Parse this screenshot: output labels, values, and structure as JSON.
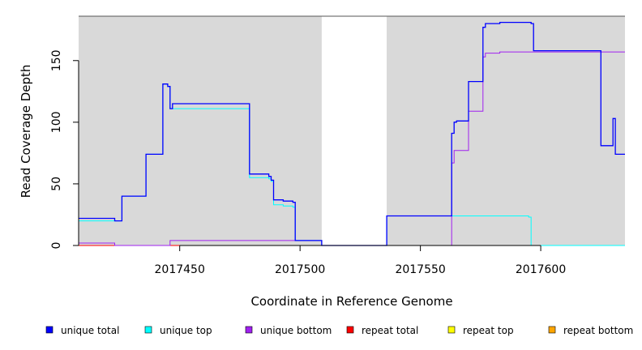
{
  "chart_data": {
    "type": "line",
    "xlabel": "Coordinate in Reference Genome",
    "ylabel": "Read Coverage Depth",
    "xlim": [
      2017408,
      2017635
    ],
    "ylim": [
      0,
      186
    ],
    "x_ticks": [
      2017450,
      2017500,
      2017550,
      2017600
    ],
    "y_ticks": [
      0,
      50,
      100,
      150
    ],
    "shaded_regions": [
      [
        2017408,
        2017509
      ],
      [
        2017536,
        2017635
      ]
    ],
    "panel_color": "#d9d9d9",
    "legend": [
      {
        "name": "unique total",
        "color": "#0000ff"
      },
      {
        "name": "unique top",
        "color": "#00ffff"
      },
      {
        "name": "unique bottom",
        "color": "#a020f0"
      },
      {
        "name": "repeat total",
        "color": "#ff0000"
      },
      {
        "name": "repeat top",
        "color": "#ffff00"
      },
      {
        "name": "repeat bottom",
        "color": "#ffa500"
      }
    ],
    "series": [
      {
        "name": "unique total",
        "color": "#0000ff",
        "x": [
          2017408,
          2017423,
          2017426,
          2017436,
          2017443,
          2017445,
          2017446,
          2017447,
          2017479,
          2017487,
          2017488,
          2017489,
          2017493,
          2017497,
          2017498,
          2017509,
          2017536,
          2017563,
          2017564,
          2017565,
          2017570,
          2017576,
          2017577,
          2017583,
          2017596,
          2017597,
          2017625,
          2017630,
          2017631,
          2017635
        ],
        "y": [
          22,
          20,
          40,
          74,
          131,
          129,
          111,
          115,
          58,
          56,
          53,
          37,
          36,
          35,
          4,
          0,
          24,
          91,
          100,
          101,
          133,
          177,
          180,
          181,
          180,
          158,
          81,
          103,
          74,
          74
        ]
      },
      {
        "name": "unique top",
        "color": "#00ffff",
        "x": [
          2017408,
          2017423,
          2017426,
          2017436,
          2017443,
          2017445,
          2017446,
          2017447,
          2017479,
          2017487,
          2017488,
          2017489,
          2017493,
          2017497,
          2017498,
          2017509,
          2017536,
          2017595,
          2017596,
          2017635
        ],
        "y": [
          20,
          20,
          40,
          74,
          131,
          129,
          111,
          111,
          55,
          54,
          52,
          33,
          32,
          31,
          4,
          0,
          24,
          23,
          0,
          0
        ]
      },
      {
        "name": "unique bottom",
        "color": "#a020f0",
        "x": [
          2017408,
          2017423,
          2017446,
          2017509,
          2017536,
          2017563,
          2017564,
          2017570,
          2017576,
          2017577,
          2017583,
          2017596,
          2017635
        ],
        "y": [
          2,
          0,
          4,
          0,
          0,
          67,
          77,
          109,
          153,
          156,
          157,
          157,
          157
        ]
      },
      {
        "name": "repeat total",
        "color": "#ff0000",
        "x": [
          2017408,
          2017635
        ],
        "y": [
          0,
          0
        ]
      },
      {
        "name": "repeat top",
        "color": "#ffff00",
        "x": [
          2017408,
          2017635
        ],
        "y": [
          0,
          0
        ]
      },
      {
        "name": "repeat bottom",
        "color": "#ffa500",
        "x": [
          2017408,
          2017596
        ],
        "y": [
          0,
          0
        ]
      }
    ]
  }
}
